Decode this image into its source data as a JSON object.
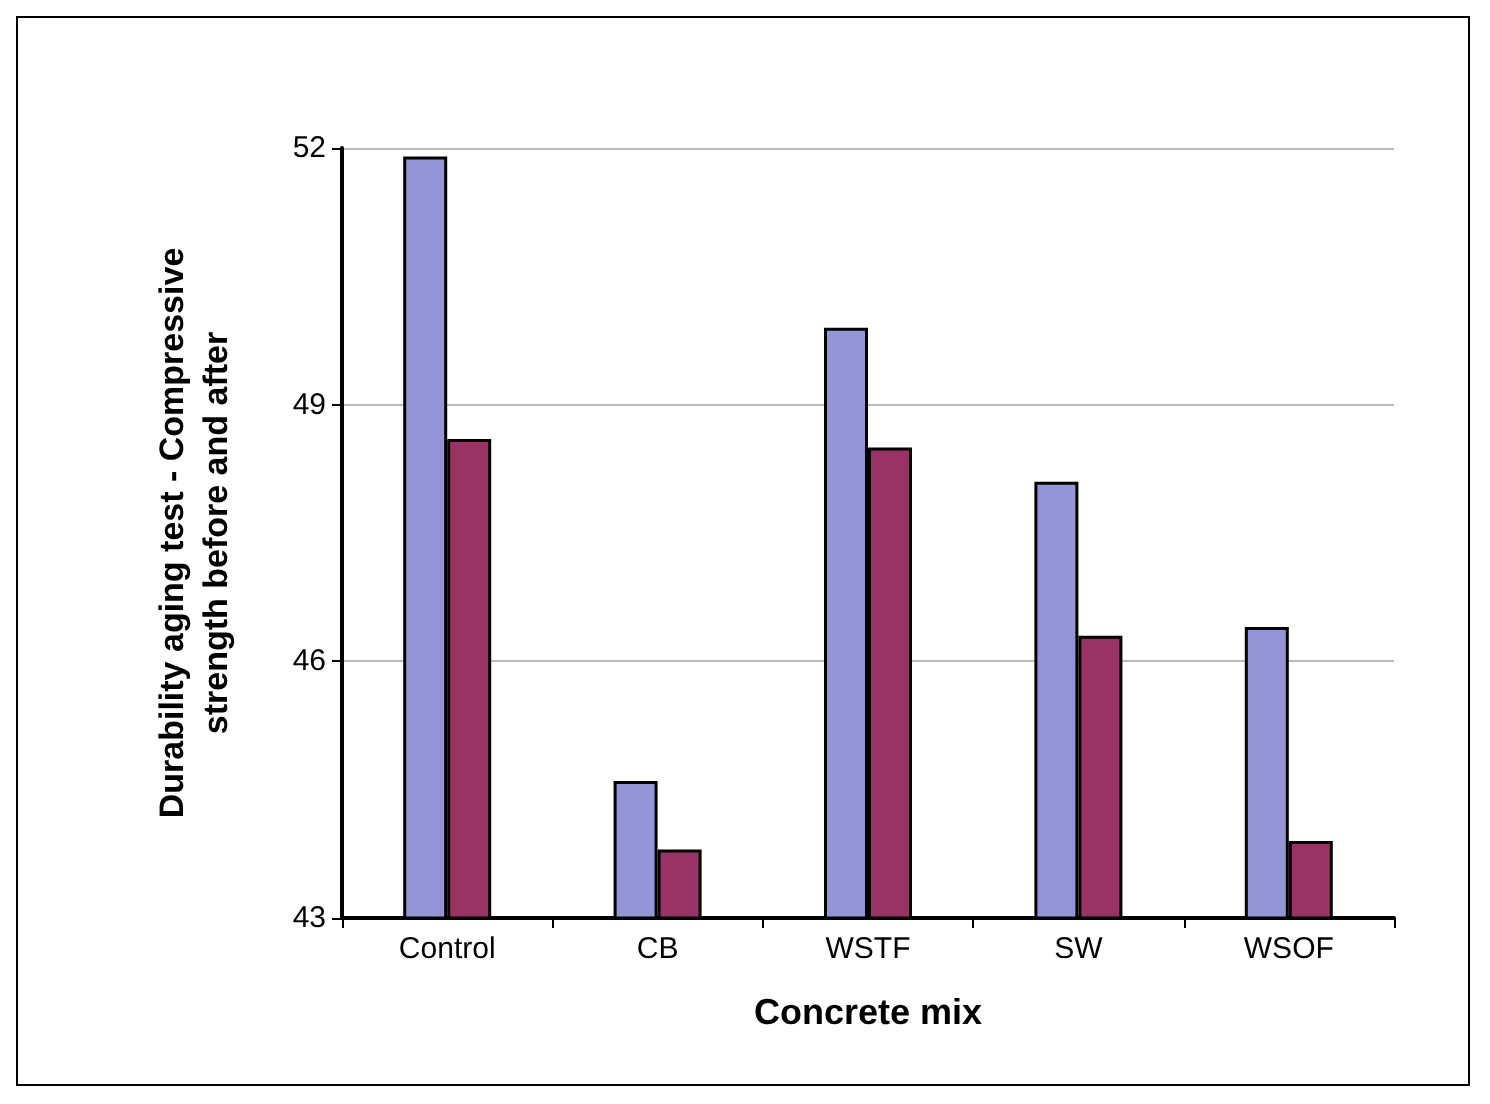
{
  "chart_data": {
    "type": "bar",
    "xlabel": "Concrete mix",
    "ylabel": "Durability aging test - Compressive\nstrength before and after",
    "categories": [
      "Control",
      "CB",
      "WSTF",
      "SW",
      "WSOF"
    ],
    "series": [
      {
        "color": "#9395d6",
        "values": [
          51.9,
          44.6,
          49.9,
          48.1,
          46.4
        ]
      },
      {
        "color": "#993366",
        "values": [
          48.6,
          43.8,
          48.5,
          46.3,
          43.9
        ]
      }
    ],
    "ylim": [
      43,
      52
    ],
    "yticks": [
      43,
      46,
      49,
      52
    ],
    "grid": "y"
  }
}
